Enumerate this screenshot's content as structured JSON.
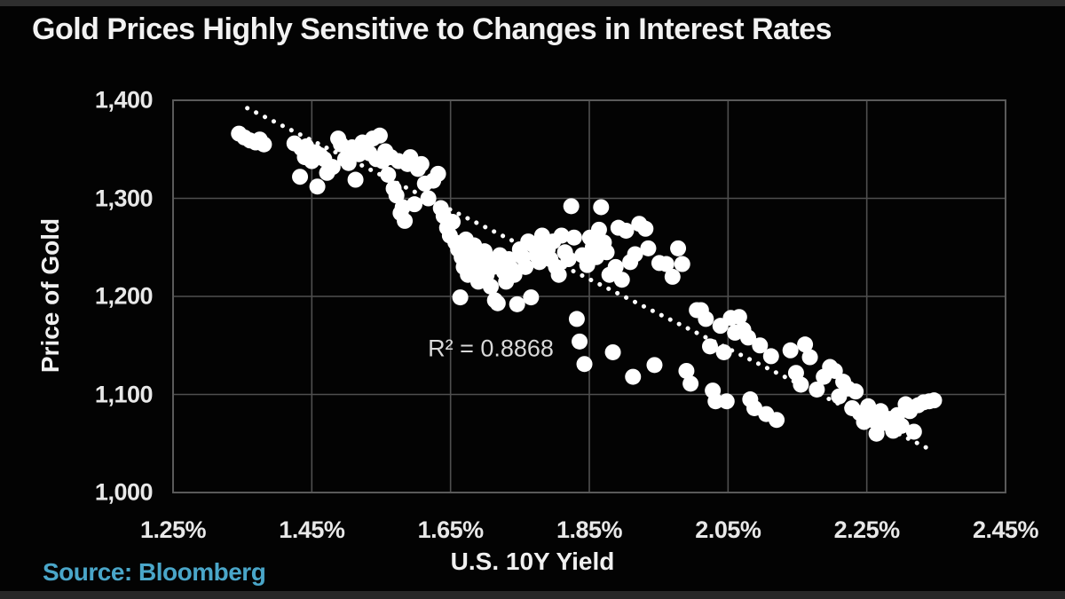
{
  "title": "Gold Prices Highly Sensitive to Changes in Interest Rates",
  "source": "Source: Bloomberg",
  "colors": {
    "background": "#030303",
    "title_text": "#f2f2f2",
    "tick_text": "#e8e8e8",
    "grid": "#4f4f4f",
    "frame": "#5a5a5a",
    "point": "#ffffff",
    "trendline": "#ffffff",
    "annotation_text": "#d9d9d9",
    "source_text": "#4aa6c9"
  },
  "chart_data": {
    "type": "scatter",
    "title": "Gold Prices Highly Sensitive to Changes in Interest Rates",
    "xlabel": "U.S. 10Y Yield",
    "ylabel": "Price of Gold",
    "xlim": [
      1.25,
      2.45
    ],
    "ylim": [
      1000,
      1400
    ],
    "grid": true,
    "legend": "none",
    "x_ticks": [
      1.25,
      1.45,
      1.65,
      1.85,
      2.05,
      2.25,
      2.45
    ],
    "x_tick_labels": [
      "1.25%",
      "1.45%",
      "1.65%",
      "1.85%",
      "2.05%",
      "2.25%",
      "2.45%"
    ],
    "y_ticks": [
      1400,
      1300,
      1200,
      1100,
      1000
    ],
    "y_tick_labels": [
      "1,400",
      "1,300",
      "1,200",
      "1,100",
      "1,000"
    ],
    "annotation": {
      "label": "R² = 0.8868",
      "x": 1.71,
      "y": 1147
    },
    "trendline": {
      "style": "dotted",
      "x1": 1.357,
      "y1": 1392,
      "x2": 2.338,
      "y2": 1045,
      "r_squared": 0.8868
    },
    "points": [
      [
        1.345,
        1366
      ],
      [
        1.353,
        1362
      ],
      [
        1.361,
        1359
      ],
      [
        1.369,
        1357
      ],
      [
        1.375,
        1360
      ],
      [
        1.381,
        1355
      ],
      [
        1.425,
        1356
      ],
      [
        1.433,
        1322
      ],
      [
        1.435,
        1351
      ],
      [
        1.44,
        1342
      ],
      [
        1.442,
        1353
      ],
      [
        1.446,
        1348
      ],
      [
        1.45,
        1338
      ],
      [
        1.455,
        1347
      ],
      [
        1.458,
        1312
      ],
      [
        1.462,
        1344
      ],
      [
        1.468,
        1340
      ],
      [
        1.472,
        1326
      ],
      [
        1.48,
        1332
      ],
      [
        1.488,
        1361
      ],
      [
        1.492,
        1355
      ],
      [
        1.498,
        1340
      ],
      [
        1.503,
        1336
      ],
      [
        1.508,
        1352
      ],
      [
        1.513,
        1319
      ],
      [
        1.518,
        1345
      ],
      [
        1.523,
        1357
      ],
      [
        1.528,
        1350
      ],
      [
        1.533,
        1346
      ],
      [
        1.538,
        1361
      ],
      [
        1.543,
        1340
      ],
      [
        1.548,
        1364
      ],
      [
        1.552,
        1338
      ],
      [
        1.556,
        1348
      ],
      [
        1.56,
        1324
      ],
      [
        1.564,
        1342
      ],
      [
        1.568,
        1310
      ],
      [
        1.572,
        1303
      ],
      [
        1.575,
        1338
      ],
      [
        1.578,
        1285
      ],
      [
        1.581,
        1291
      ],
      [
        1.584,
        1277
      ],
      [
        1.588,
        1335
      ],
      [
        1.592,
        1342
      ],
      [
        1.598,
        1294
      ],
      [
        1.603,
        1330
      ],
      [
        1.608,
        1335
      ],
      [
        1.613,
        1315
      ],
      [
        1.618,
        1300
      ],
      [
        1.625,
        1318
      ],
      [
        1.632,
        1325
      ],
      [
        1.636,
        1290
      ],
      [
        1.64,
        1282
      ],
      [
        1.645,
        1270
      ],
      [
        1.649,
        1262
      ],
      [
        1.653,
        1276
      ],
      [
        1.657,
        1255
      ],
      [
        1.661,
        1248
      ],
      [
        1.664,
        1199
      ],
      [
        1.666,
        1240
      ],
      [
        1.669,
        1230
      ],
      [
        1.672,
        1258
      ],
      [
        1.675,
        1222
      ],
      [
        1.678,
        1245
      ],
      [
        1.681,
        1235
      ],
      [
        1.684,
        1252
      ],
      [
        1.687,
        1228
      ],
      [
        1.69,
        1215
      ],
      [
        1.693,
        1240
      ],
      [
        1.696,
        1232
      ],
      [
        1.699,
        1246
      ],
      [
        1.702,
        1222
      ],
      [
        1.705,
        1238
      ],
      [
        1.708,
        1210
      ],
      [
        1.711,
        1230
      ],
      [
        1.714,
        1196
      ],
      [
        1.718,
        1193
      ],
      [
        1.721,
        1242
      ],
      [
        1.724,
        1232
      ],
      [
        1.727,
        1225
      ],
      [
        1.73,
        1215
      ],
      [
        1.734,
        1238
      ],
      [
        1.738,
        1228
      ],
      [
        1.742,
        1222
      ],
      [
        1.746,
        1192
      ],
      [
        1.75,
        1248
      ],
      [
        1.754,
        1240
      ],
      [
        1.758,
        1230
      ],
      [
        1.762,
        1256
      ],
      [
        1.766,
        1199
      ],
      [
        1.77,
        1252
      ],
      [
        1.774,
        1242
      ],
      [
        1.778,
        1235
      ],
      [
        1.782,
        1262
      ],
      [
        1.786,
        1252
      ],
      [
        1.79,
        1248
      ],
      [
        1.794,
        1238
      ],
      [
        1.798,
        1256
      ],
      [
        1.802,
        1230
      ],
      [
        1.806,
        1222
      ],
      [
        1.81,
        1262
      ],
      [
        1.815,
        1245
      ],
      [
        1.82,
        1238
      ],
      [
        1.824,
        1292
      ],
      [
        1.828,
        1260
      ],
      [
        1.832,
        1177
      ],
      [
        1.836,
        1154
      ],
      [
        1.84,
        1242
      ],
      [
        1.843,
        1131
      ],
      [
        1.847,
        1232
      ],
      [
        1.851,
        1260
      ],
      [
        1.855,
        1250
      ],
      [
        1.86,
        1240
      ],
      [
        1.864,
        1268
      ],
      [
        1.867,
        1291
      ],
      [
        1.871,
        1255
      ],
      [
        1.875,
        1245
      ],
      [
        1.879,
        1222
      ],
      [
        1.884,
        1143
      ],
      [
        1.888,
        1230
      ],
      [
        1.892,
        1270
      ],
      [
        1.897,
        1217
      ],
      [
        1.903,
        1267
      ],
      [
        1.909,
        1235
      ],
      [
        1.913,
        1118
      ],
      [
        1.916,
        1243
      ],
      [
        1.922,
        1274
      ],
      [
        1.931,
        1269
      ],
      [
        1.935,
        1249
      ],
      [
        1.944,
        1130
      ],
      [
        1.951,
        1234
      ],
      [
        1.961,
        1233
      ],
      [
        1.97,
        1220
      ],
      [
        1.978,
        1249
      ],
      [
        1.984,
        1233
      ],
      [
        1.99,
        1124
      ],
      [
        1.996,
        1111
      ],
      [
        2.005,
        1186
      ],
      [
        2.011,
        1186
      ],
      [
        2.018,
        1177
      ],
      [
        2.024,
        1149
      ],
      [
        2.028,
        1104
      ],
      [
        2.032,
        1093
      ],
      [
        2.039,
        1170
      ],
      [
        2.044,
        1143
      ],
      [
        2.048,
        1093
      ],
      [
        2.054,
        1178
      ],
      [
        2.06,
        1163
      ],
      [
        2.066,
        1179
      ],
      [
        2.072,
        1166
      ],
      [
        2.079,
        1158
      ],
      [
        2.082,
        1095
      ],
      [
        2.088,
        1086
      ],
      [
        2.096,
        1150
      ],
      [
        2.105,
        1080
      ],
      [
        2.112,
        1139
      ],
      [
        2.12,
        1074
      ],
      [
        2.14,
        1145
      ],
      [
        2.148,
        1122
      ],
      [
        2.155,
        1110
      ],
      [
        2.161,
        1151
      ],
      [
        2.168,
        1138
      ],
      [
        2.178,
        1105
      ],
      [
        2.188,
        1118
      ],
      [
        2.197,
        1128
      ],
      [
        2.204,
        1124
      ],
      [
        2.21,
        1098
      ],
      [
        2.216,
        1113
      ],
      [
        2.223,
        1106
      ],
      [
        2.229,
        1086
      ],
      [
        2.234,
        1103
      ],
      [
        2.24,
        1081
      ],
      [
        2.246,
        1072
      ],
      [
        2.252,
        1088
      ],
      [
        2.258,
        1074
      ],
      [
        2.264,
        1060
      ],
      [
        2.27,
        1083
      ],
      [
        2.276,
        1071
      ],
      [
        2.282,
        1075
      ],
      [
        2.288,
        1063
      ],
      [
        2.294,
        1079
      ],
      [
        2.3,
        1068
      ],
      [
        2.306,
        1090
      ],
      [
        2.312,
        1083
      ],
      [
        2.318,
        1062
      ],
      [
        2.324,
        1089
      ],
      [
        2.332,
        1092
      ],
      [
        2.34,
        1093
      ],
      [
        2.347,
        1094
      ]
    ]
  }
}
